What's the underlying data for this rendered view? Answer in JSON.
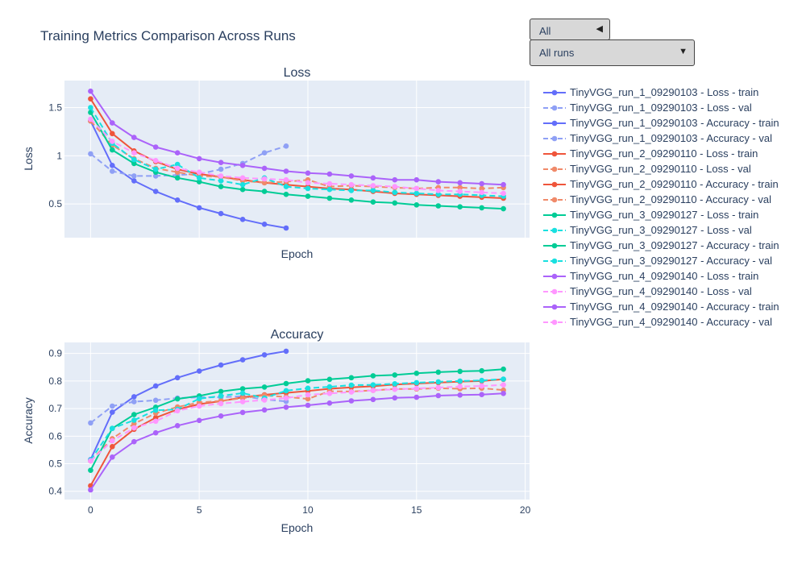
{
  "figure_title": "Training Metrics Comparison Across Runs",
  "controls": {
    "metric_dropdown": {
      "selected": "All",
      "icon": "triangle-left-icon"
    },
    "run_dropdown": {
      "selected": "All runs",
      "icon": "triangle-down-icon"
    }
  },
  "colors": {
    "plot_bg": "#e5ecf6",
    "grid": "#ffffff",
    "text": "#2a3f5f",
    "run1": "#636efa",
    "run1_val": "#8fa0f5",
    "run2": "#ef553b",
    "run2_val": "#f08a6a",
    "run3": "#00cc96",
    "run3_val": "#19e0e0",
    "run4": "#ab63fa",
    "run4_val": "#ff97ff"
  },
  "chart_data": [
    {
      "type": "line",
      "title": "Loss",
      "xlabel": "Epoch",
      "ylabel": "Loss",
      "xlim": [
        -1.2,
        20.2
      ],
      "ylim": [
        0.15,
        1.78
      ],
      "x_ticks": [
        0,
        5,
        10,
        15,
        20
      ],
      "y_ticks": [
        0.5,
        1,
        1.5
      ],
      "y_tick_labels": [
        "0.5",
        "1",
        "1.5"
      ],
      "show_x_tick_labels": false,
      "grid": true,
      "series": [
        {
          "name": "TinyVGG_run_1_09290103 - Loss - train",
          "color": "run1",
          "dash": false,
          "values": [
            1.36,
            0.9,
            0.74,
            0.63,
            0.54,
            0.46,
            0.4,
            0.34,
            0.29,
            0.25
          ]
        },
        {
          "name": "TinyVGG_run_1_09290103 - Loss - val",
          "color": "run1_val",
          "dash": true,
          "values": [
            1.02,
            0.84,
            0.79,
            0.79,
            0.8,
            0.81,
            0.86,
            0.92,
            1.03,
            1.1
          ]
        },
        {
          "name": "TinyVGG_run_2_09290110 - Loss - train",
          "color": "run2",
          "dash": false,
          "values": [
            1.59,
            1.23,
            1.05,
            0.94,
            0.86,
            0.81,
            0.78,
            0.75,
            0.72,
            0.7,
            0.68,
            0.66,
            0.65,
            0.63,
            0.61,
            0.6,
            0.59,
            0.58,
            0.57,
            0.56
          ]
        },
        {
          "name": "TinyVGG_run_2_09290110 - Loss - val",
          "color": "run2_val",
          "dash": true,
          "values": [
            1.36,
            1.11,
            0.97,
            0.87,
            0.83,
            0.79,
            0.78,
            0.74,
            0.72,
            0.73,
            0.75,
            0.68,
            0.69,
            0.68,
            0.67,
            0.66,
            0.67,
            0.67,
            0.66,
            0.67
          ]
        },
        {
          "name": "TinyVGG_run_3_09290127 - Loss - train",
          "color": "run3",
          "dash": false,
          "values": [
            1.45,
            1.06,
            0.92,
            0.83,
            0.77,
            0.73,
            0.68,
            0.65,
            0.63,
            0.6,
            0.58,
            0.56,
            0.54,
            0.52,
            0.51,
            0.49,
            0.48,
            0.47,
            0.46,
            0.45
          ]
        },
        {
          "name": "TinyVGG_run_3_09290127 - Loss - val",
          "color": "run3_val",
          "dash": true,
          "values": [
            1.5,
            1.13,
            0.96,
            0.86,
            0.91,
            0.77,
            0.74,
            0.7,
            0.77,
            0.68,
            0.66,
            0.65,
            0.64,
            0.64,
            0.62,
            0.61,
            0.6,
            0.6,
            0.59,
            0.58
          ]
        },
        {
          "name": "TinyVGG_run_4_09290140 - Loss - train",
          "color": "run4",
          "dash": false,
          "values": [
            1.67,
            1.34,
            1.19,
            1.09,
            1.03,
            0.97,
            0.93,
            0.9,
            0.87,
            0.84,
            0.82,
            0.81,
            0.79,
            0.77,
            0.75,
            0.75,
            0.73,
            0.72,
            0.71,
            0.7
          ]
        },
        {
          "name": "TinyVGG_run_4_09290140 - Loss - val",
          "color": "run4_val",
          "dash": true,
          "values": [
            1.38,
            1.15,
            1.03,
            0.95,
            0.87,
            0.83,
            0.79,
            0.77,
            0.76,
            0.75,
            0.72,
            0.71,
            0.7,
            0.69,
            0.68,
            0.66,
            0.64,
            0.63,
            0.62,
            0.61
          ]
        }
      ]
    },
    {
      "type": "line",
      "title": "Accuracy",
      "xlabel": "Epoch",
      "ylabel": "Accuracy",
      "xlim": [
        -1.2,
        20.2
      ],
      "ylim": [
        0.37,
        0.94
      ],
      "x_ticks": [
        0,
        5,
        10,
        15,
        20
      ],
      "y_ticks": [
        0.4,
        0.5,
        0.6,
        0.7,
        0.8,
        0.9
      ],
      "y_tick_labels": [
        "0.4",
        "0.5",
        "0.6",
        "0.7",
        "0.8",
        "0.9"
      ],
      "show_x_tick_labels": true,
      "grid": true,
      "series": [
        {
          "name": "TinyVGG_run_1_09290103 - Accuracy - train",
          "color": "run1",
          "dash": false,
          "values": [
            0.515,
            0.687,
            0.743,
            0.782,
            0.812,
            0.836,
            0.858,
            0.877,
            0.895,
            0.908
          ]
        },
        {
          "name": "TinyVGG_run_1_09290103 - Accuracy - val",
          "color": "run1_val",
          "dash": true,
          "values": [
            0.648,
            0.709,
            0.725,
            0.73,
            0.738,
            0.741,
            0.741,
            0.745,
            0.733,
            0.726
          ]
        },
        {
          "name": "TinyVGG_run_2_09290110 - Accuracy - train",
          "color": "run2",
          "dash": false,
          "values": [
            0.42,
            0.562,
            0.625,
            0.667,
            0.697,
            0.716,
            0.727,
            0.741,
            0.75,
            0.757,
            0.764,
            0.772,
            0.777,
            0.781,
            0.787,
            0.791,
            0.794,
            0.798,
            0.8,
            0.806
          ]
        },
        {
          "name": "TinyVGG_run_2_09290110 - Accuracy - val",
          "color": "run2_val",
          "dash": true,
          "values": [
            0.51,
            0.591,
            0.645,
            0.683,
            0.706,
            0.722,
            0.728,
            0.738,
            0.748,
            0.742,
            0.735,
            0.763,
            0.762,
            0.766,
            0.771,
            0.771,
            0.774,
            0.772,
            0.774,
            0.767
          ]
        },
        {
          "name": "TinyVGG_run_3_09290127 - Accuracy - train",
          "color": "run3",
          "dash": false,
          "values": [
            0.476,
            0.628,
            0.678,
            0.705,
            0.735,
            0.746,
            0.762,
            0.772,
            0.778,
            0.791,
            0.801,
            0.806,
            0.812,
            0.819,
            0.822,
            0.828,
            0.832,
            0.835,
            0.837,
            0.843
          ]
        },
        {
          "name": "TinyVGG_run_3_09290127 - Accuracy - val",
          "color": "run3_val",
          "dash": true,
          "values": [
            0.513,
            0.628,
            0.658,
            0.694,
            0.697,
            0.736,
            0.746,
            0.756,
            0.738,
            0.765,
            0.774,
            0.779,
            0.785,
            0.786,
            0.79,
            0.794,
            0.797,
            0.8,
            0.802,
            0.807
          ]
        },
        {
          "name": "TinyVGG_run_4_09290140 - Accuracy - train",
          "color": "run4",
          "dash": false,
          "values": [
            0.405,
            0.524,
            0.58,
            0.612,
            0.638,
            0.657,
            0.673,
            0.686,
            0.695,
            0.705,
            0.712,
            0.72,
            0.728,
            0.733,
            0.739,
            0.741,
            0.747,
            0.749,
            0.751,
            0.755
          ]
        },
        {
          "name": "TinyVGG_run_4_09290140 - Accuracy - val",
          "color": "run4_val",
          "dash": true,
          "values": [
            0.51,
            0.583,
            0.63,
            0.654,
            0.692,
            0.709,
            0.718,
            0.725,
            0.731,
            0.738,
            0.75,
            0.755,
            0.76,
            0.766,
            0.77,
            0.773,
            0.776,
            0.78,
            0.782,
            0.786
          ]
        }
      ]
    }
  ]
}
